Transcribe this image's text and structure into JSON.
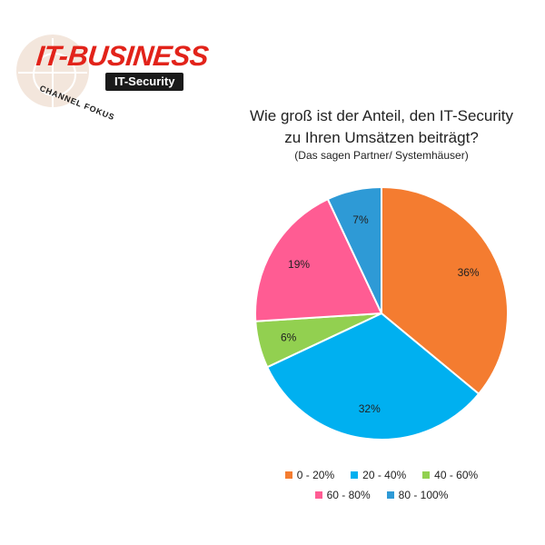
{
  "logo": {
    "brand": "IT-BUSINESS",
    "tag": "IT-Security",
    "subbrand": "CHANNEL FOKUS"
  },
  "chart_data": {
    "type": "pie",
    "title_line1": "Wie groß ist der Anteil, den IT-Security",
    "title_line2": "zu Ihren Umsätzen beiträgt?",
    "subtitle": "(Das sagen Partner/ Systemhäuser)",
    "categories": [
      "0 - 20%",
      "20 - 40%",
      "40 - 60%",
      "60 - 80%",
      "80 - 100%"
    ],
    "values": [
      36,
      32,
      6,
      19,
      7
    ],
    "labels": [
      "36%",
      "32%",
      "6%",
      "19%",
      "7%"
    ],
    "colors": [
      "#f47c30",
      "#00b0f0",
      "#92d050",
      "#ff5c93",
      "#2e9ad6"
    ],
    "legend_position": "bottom"
  }
}
